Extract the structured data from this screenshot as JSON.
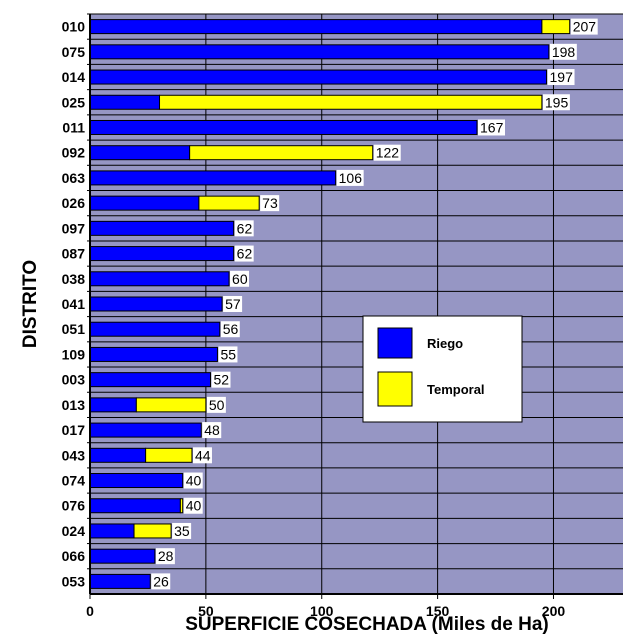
{
  "chart_data": {
    "type": "bar",
    "orientation": "horizontal",
    "stacked": true,
    "title": "",
    "xlabel": "SUPERFICIE COSECHADA (Miles de Ha)",
    "ylabel": "DISTRITO",
    "xlim": [
      0,
      230
    ],
    "xticks": [
      "0",
      "50",
      "100",
      "150",
      "200"
    ],
    "grid": true,
    "legend_position": "center-right",
    "categories": [
      "010",
      "075",
      "014",
      "025",
      "011",
      "092",
      "063",
      "026",
      "097",
      "087",
      "038",
      "041",
      "051",
      "109",
      "003",
      "013",
      "017",
      "043",
      "074",
      "076",
      "024",
      "066",
      "053"
    ],
    "series": [
      {
        "name": "Riego",
        "color": "#0000ff",
        "values": [
          195,
          198,
          197,
          30,
          167,
          43,
          106,
          47,
          62,
          62,
          60,
          57,
          56,
          55,
          52,
          20,
          48,
          24,
          40,
          39,
          19,
          28,
          26
        ]
      },
      {
        "name": "Temporal",
        "color": "#ffff00",
        "values": [
          12,
          0,
          0,
          165,
          0,
          79,
          0,
          26,
          0,
          0,
          0,
          0,
          0,
          0,
          0,
          30,
          0,
          20,
          0,
          1,
          16,
          0,
          0
        ]
      }
    ],
    "totals": [
      "207",
      "198",
      "197",
      "195",
      "167",
      "122",
      "106",
      "73",
      "62",
      "62",
      "60",
      "57",
      "56",
      "55",
      "52",
      "50",
      "48",
      "44",
      "40",
      "40",
      "35",
      "28",
      "26"
    ],
    "plot_background": "#9696c4"
  }
}
